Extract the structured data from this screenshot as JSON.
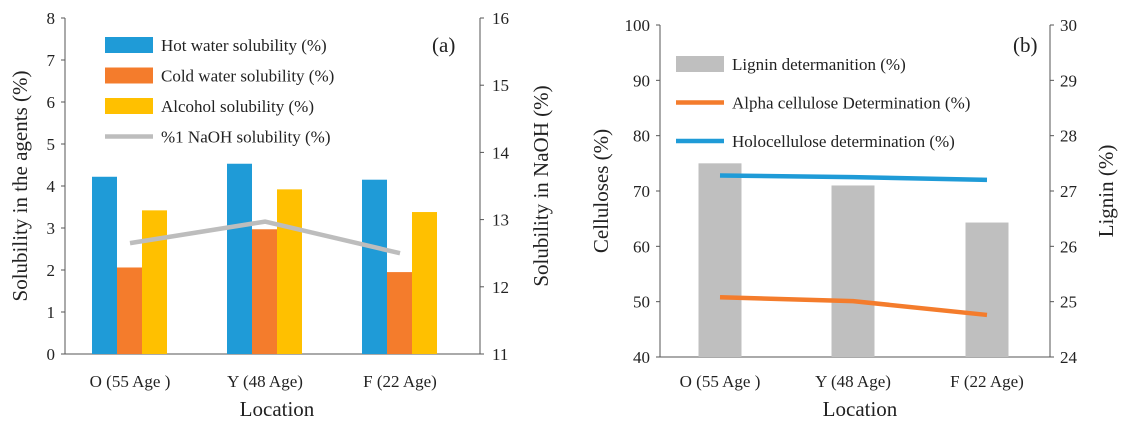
{
  "chart_data": [
    {
      "type": "bar",
      "panel_label": "(a)",
      "categories": [
        "O (55 Age )",
        "Y (48 Age)",
        "F (22 Age)"
      ],
      "xlabel": "Location",
      "ylabel": "Solubility in the agents (%)",
      "ylabel2": "Solubility in NaOH (%)",
      "ylim": [
        0,
        8
      ],
      "y2lim": [
        11,
        16
      ],
      "yticks": [
        "0",
        "1",
        "2",
        "3",
        "4",
        "5",
        "6",
        "7",
        "8"
      ],
      "y2ticks": [
        "11",
        "12",
        "13",
        "14",
        "15",
        "16"
      ],
      "legend_position": "top-left",
      "grid": false,
      "series": [
        {
          "name": "Hot water solubility (%)",
          "type": "bar",
          "axis": "left",
          "color": "#1f9bd7",
          "values": [
            4.22,
            4.53,
            4.15
          ]
        },
        {
          "name": "Cold water solubility (%)",
          "type": "bar",
          "axis": "left",
          "color": "#f47c2c",
          "values": [
            2.06,
            2.97,
            1.95
          ]
        },
        {
          "name": "Alcohol solubility (%)",
          "type": "bar",
          "axis": "left",
          "color": "#ffc000",
          "values": [
            3.42,
            3.92,
            3.38
          ]
        },
        {
          "name": "%1 NaOH solubility (%)",
          "type": "line",
          "axis": "right",
          "color": "#bdbdbd",
          "values": [
            12.65,
            12.97,
            12.5
          ]
        }
      ]
    },
    {
      "type": "bar",
      "panel_label": "(b)",
      "categories": [
        "O (55 Age )",
        "Y (48 Age)",
        "F (22 Age)"
      ],
      "xlabel": "Location",
      "ylabel": "Celluloses (%)",
      "ylabel2": "Lignin (%)",
      "ylim": [
        40,
        100
      ],
      "y2lim": [
        24,
        30
      ],
      "yticks": [
        "40",
        "50",
        "60",
        "70",
        "80",
        "90",
        "100"
      ],
      "y2ticks": [
        "24",
        "25",
        "26",
        "27",
        "28",
        "29",
        "30"
      ],
      "legend_position": "top-left",
      "grid": false,
      "series": [
        {
          "name": "Lignin determanition (%)",
          "type": "bar",
          "axis": "right",
          "color": "#bfbfbf",
          "values": [
            27.5,
            27.1,
            26.43
          ]
        },
        {
          "name": "Alpha cellulose Determination (%)",
          "type": "line",
          "axis": "left",
          "color": "#f47c2c",
          "values": [
            50.8,
            50.1,
            47.6
          ]
        },
        {
          "name": "Holocellulose determination (%)",
          "type": "line",
          "axis": "left",
          "color": "#1f9bd7",
          "values": [
            72.8,
            72.5,
            72.0
          ]
        }
      ]
    }
  ]
}
